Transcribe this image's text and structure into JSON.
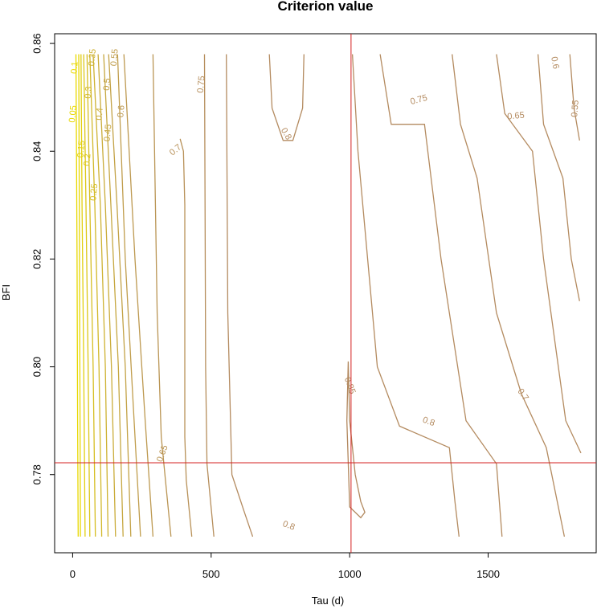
{
  "chart_data": {
    "type": "contour",
    "title": "Criterion value",
    "xlabel": "Tau (d)",
    "ylabel": "BFI",
    "xlim": [
      -65,
      1890
    ],
    "ylim": [
      0.7655,
      0.8618
    ],
    "xticks": [
      "0",
      "500",
      "1000",
      "1500"
    ],
    "yticks": [
      "0.78",
      "0.80",
      "0.82",
      "0.84",
      "0.86"
    ],
    "contours": [
      {
        "level": "0.05",
        "color": "#e8d800",
        "points": [
          [
            20,
            0.7685
          ],
          [
            18,
            0.79
          ],
          [
            16,
            0.82
          ],
          [
            14,
            0.84
          ],
          [
            12,
            0.858
          ]
        ]
      },
      {
        "level": "0.1",
        "color": "#e8d800",
        "points": [
          [
            28,
            0.7685
          ],
          [
            26,
            0.8
          ],
          [
            24,
            0.83
          ],
          [
            22,
            0.858
          ]
        ]
      },
      {
        "level": "0.15",
        "color": "#e2cf10",
        "points": [
          [
            45,
            0.7685
          ],
          [
            40,
            0.8
          ],
          [
            34,
            0.83
          ],
          [
            30,
            0.858
          ]
        ]
      },
      {
        "level": "0.2",
        "color": "#dcc718",
        "points": [
          [
            62,
            0.7685
          ],
          [
            56,
            0.8
          ],
          [
            48,
            0.83
          ],
          [
            40,
            0.858
          ]
        ]
      },
      {
        "level": "0.25",
        "color": "#d6be22",
        "points": [
          [
            82,
            0.7685
          ],
          [
            74,
            0.8
          ],
          [
            62,
            0.83
          ],
          [
            52,
            0.858
          ]
        ]
      },
      {
        "level": "0.3",
        "color": "#d2b82a",
        "points": [
          [
            105,
            0.7685
          ],
          [
            95,
            0.8
          ],
          [
            80,
            0.83
          ],
          [
            62,
            0.858
          ]
        ]
      },
      {
        "level": "0.35",
        "color": "#ceb232",
        "points": [
          [
            128,
            0.7685
          ],
          [
            118,
            0.8
          ],
          [
            100,
            0.83
          ],
          [
            74,
            0.858
          ]
        ]
      },
      {
        "level": "0.4",
        "color": "#caac3a",
        "points": [
          [
            155,
            0.7685
          ],
          [
            140,
            0.8
          ],
          [
            118,
            0.83
          ],
          [
            92,
            0.858
          ]
        ]
      },
      {
        "level": "0.45",
        "color": "#c6a740",
        "points": [
          [
            182,
            0.7685
          ],
          [
            165,
            0.8
          ],
          [
            138,
            0.83
          ],
          [
            112,
            0.858
          ]
        ]
      },
      {
        "level": "0.5",
        "color": "#c3a246",
        "points": [
          [
            210,
            0.7685
          ],
          [
            190,
            0.8
          ],
          [
            160,
            0.83
          ],
          [
            130,
            0.858
          ]
        ]
      },
      {
        "level": "0.55",
        "color": "#c09d4c",
        "points": [
          [
            245,
            0.7685
          ],
          [
            222,
            0.79
          ],
          [
            190,
            0.82
          ],
          [
            162,
            0.858
          ]
        ]
      },
      {
        "level": "0.6",
        "color": "#bd9950",
        "points": [
          [
            290,
            0.7685
          ],
          [
            262,
            0.79
          ],
          [
            225,
            0.82
          ],
          [
            185,
            0.858
          ]
        ]
      },
      {
        "level": "0.65",
        "color": "#ba9554",
        "points": [
          [
            355,
            0.7685
          ],
          [
            335,
            0.779
          ],
          [
            320,
            0.787
          ],
          [
            305,
            0.81
          ],
          [
            290,
            0.858
          ]
        ]
      },
      {
        "level": "0.7",
        "color": "#b89158",
        "points": [
          [
            430,
            0.7685
          ],
          [
            410,
            0.779
          ],
          [
            405,
            0.787
          ],
          [
            405,
            0.83
          ],
          [
            400,
            0.84
          ],
          [
            388,
            0.8423
          ]
        ]
      },
      {
        "level": "0.75",
        "color": "#b68e5c",
        "points": [
          [
            510,
            0.7685
          ],
          [
            485,
            0.782
          ],
          [
            480,
            0.8
          ],
          [
            478,
            0.83
          ],
          [
            476,
            0.858
          ]
        ]
      },
      {
        "level": "0.8",
        "color": "#b48b60",
        "points": [
          [
            650,
            0.7685
          ],
          [
            620,
            0.773
          ],
          [
            575,
            0.78
          ],
          [
            560,
            0.81
          ],
          [
            555,
            0.858
          ]
        ]
      },
      {
        "level": "0.8",
        "color": "#b48b60",
        "points": [
          [
            710,
            0.858
          ],
          [
            720,
            0.848
          ],
          [
            760,
            0.842
          ],
          [
            795,
            0.842
          ],
          [
            830,
            0.848
          ],
          [
            835,
            0.858
          ]
        ]
      },
      {
        "level": "0.85",
        "color": "#b2885e",
        "points": [
          [
            995,
            0.801
          ],
          [
            1000,
            0.79
          ],
          [
            1020,
            0.78
          ],
          [
            1040,
            0.775
          ],
          [
            1055,
            0.773
          ],
          [
            1040,
            0.772
          ],
          [
            1000,
            0.774
          ],
          [
            990,
            0.79
          ],
          [
            995,
            0.801
          ]
        ]
      },
      {
        "level": "0.8",
        "color": "#b48b60",
        "points": [
          [
            1010,
            0.858
          ],
          [
            1030,
            0.84
          ],
          [
            1100,
            0.8
          ],
          [
            1180,
            0.789
          ],
          [
            1360,
            0.785
          ],
          [
            1380,
            0.775
          ],
          [
            1395,
            0.7685
          ]
        ]
      },
      {
        "level": "0.75",
        "color": "#b48b60",
        "points": [
          [
            1110,
            0.858
          ],
          [
            1150,
            0.845
          ],
          [
            1270,
            0.845
          ],
          [
            1330,
            0.82
          ],
          [
            1420,
            0.79
          ],
          [
            1530,
            0.782
          ],
          [
            1550,
            0.7685
          ]
        ]
      },
      {
        "level": "0.7",
        "color": "#b48b60",
        "points": [
          [
            1370,
            0.858
          ],
          [
            1400,
            0.845
          ],
          [
            1460,
            0.835
          ],
          [
            1530,
            0.81
          ],
          [
            1620,
            0.795
          ],
          [
            1710,
            0.785
          ],
          [
            1775,
            0.7685
          ]
        ]
      },
      {
        "level": "0.65",
        "color": "#b48b60",
        "points": [
          [
            1530,
            0.858
          ],
          [
            1560,
            0.847
          ],
          [
            1660,
            0.84
          ],
          [
            1700,
            0.82
          ],
          [
            1780,
            0.79
          ],
          [
            1835,
            0.784
          ]
        ]
      },
      {
        "level": "0.6",
        "color": "#b48b60",
        "points": [
          [
            1680,
            0.858
          ],
          [
            1700,
            0.845
          ],
          [
            1770,
            0.835
          ],
          [
            1800,
            0.82
          ],
          [
            1830,
            0.8122
          ]
        ]
      },
      {
        "level": "0.55",
        "color": "#b48b60",
        "points": [
          [
            1795,
            0.858
          ],
          [
            1810,
            0.848
          ],
          [
            1830,
            0.842
          ]
        ]
      }
    ],
    "contour_labels": [
      {
        "text": "0.05",
        "x": 2,
        "y": 0.8469,
        "rot": -85,
        "color": "#e8d800"
      },
      {
        "text": "0.1",
        "x": 8,
        "y": 0.8555,
        "rot": -85,
        "color": "#e8d800"
      },
      {
        "text": "0.15",
        "x": 32,
        "y": 0.8404,
        "rot": -85,
        "color": "#e2cf10"
      },
      {
        "text": "0.2",
        "x": 54,
        "y": 0.8384,
        "rot": -85,
        "color": "#dcc718"
      },
      {
        "text": "0.25",
        "x": 78,
        "y": 0.8324,
        "rot": -85,
        "color": "#d6be22"
      },
      {
        "text": "0.3",
        "x": 58,
        "y": 0.8509,
        "rot": -85,
        "color": "#d2b82a"
      },
      {
        "text": "0.35",
        "x": 72,
        "y": 0.8574,
        "rot": -85,
        "color": "#ceb232"
      },
      {
        "text": "0.4",
        "x": 98,
        "y": 0.8469,
        "rot": -85,
        "color": "#caac3a"
      },
      {
        "text": "0.45",
        "x": 128,
        "y": 0.8434,
        "rot": -85,
        "color": "#c6a740"
      },
      {
        "text": "0.5",
        "x": 125,
        "y": 0.8524,
        "rot": -85,
        "color": "#c3a246"
      },
      {
        "text": "0.55",
        "x": 152,
        "y": 0.8574,
        "rot": -85,
        "color": "#c09d4c"
      },
      {
        "text": "0.6",
        "x": 176,
        "y": 0.8474,
        "rot": -85,
        "color": "#bd9950"
      },
      {
        "text": "0.65",
        "x": 325,
        "y": 0.7839,
        "rot": -70,
        "color": "#ba9554"
      },
      {
        "text": "0.7",
        "x": 372,
        "y": 0.8402,
        "rot": -40,
        "color": "#b89158"
      },
      {
        "text": "0.75",
        "x": 465,
        "y": 0.8524,
        "rot": -85,
        "color": "#b68e5c"
      },
      {
        "text": "0.8",
        "x": 770,
        "y": 0.8432,
        "rot": 60,
        "color": "#b48b60"
      },
      {
        "text": "0.8",
        "x": 780,
        "y": 0.7705,
        "rot": 20,
        "color": "#b48b60"
      },
      {
        "text": "0.85",
        "x": 1000,
        "y": 0.7965,
        "rot": 70,
        "color": "#b2885e"
      },
      {
        "text": "0.75",
        "x": 1250,
        "y": 0.8495,
        "rot": -15,
        "color": "#b48b60"
      },
      {
        "text": "0.8",
        "x": 1285,
        "y": 0.7898,
        "rot": 20,
        "color": "#b48b60"
      },
      {
        "text": "0.65",
        "x": 1600,
        "y": 0.8465,
        "rot": -5,
        "color": "#b48b60"
      },
      {
        "text": "0.7",
        "x": 1625,
        "y": 0.7948,
        "rot": 55,
        "color": "#b48b60"
      },
      {
        "text": "0.6",
        "x": 1740,
        "y": 0.8564,
        "rot": 80,
        "color": "#b48b60"
      },
      {
        "text": "0.55",
        "x": 1815,
        "y": 0.8479,
        "rot": -85,
        "color": "#b48b60"
      }
    ],
    "reference_lines": {
      "color": "#d42020",
      "x": 1005,
      "y": 0.7822
    }
  }
}
